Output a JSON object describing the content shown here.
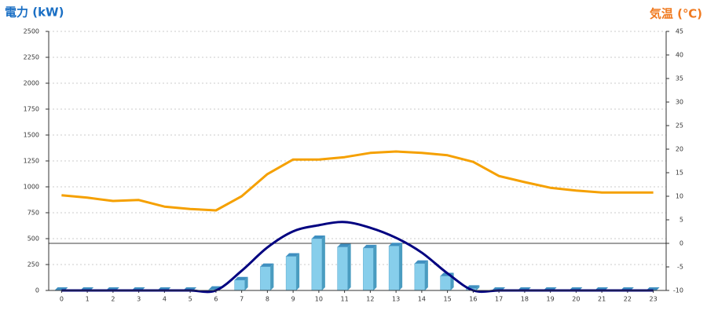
{
  "chart_data": {
    "type": "combo",
    "y_label": "電力 (kW)",
    "y2_label": "気温 (℃)",
    "categories": [
      "0",
      "1",
      "2",
      "3",
      "4",
      "5",
      "6",
      "7",
      "8",
      "9",
      "10",
      "11",
      "12",
      "13",
      "14",
      "15",
      "16",
      "17",
      "18",
      "19",
      "20",
      "21",
      "22",
      "23"
    ],
    "ylim": [
      0,
      2500
    ],
    "yticks": [
      0,
      250,
      500,
      750,
      1000,
      1250,
      1500,
      1750,
      2000,
      2250,
      2500
    ],
    "y2lim": [
      -10,
      45
    ],
    "y2ticks": [
      -10,
      -5,
      0,
      5,
      10,
      15,
      20,
      25,
      30,
      35,
      40,
      45
    ],
    "grid": true,
    "series": [
      {
        "type": "bar",
        "color": "#87ceeb",
        "values": [
          0,
          0,
          0,
          0,
          0,
          0,
          10,
          100,
          230,
          330,
          500,
          420,
          410,
          430,
          260,
          140,
          20,
          0,
          0,
          0,
          0,
          0,
          0,
          0
        ]
      },
      {
        "type": "line",
        "smooth": true,
        "color": "#000080",
        "values": [
          0,
          0,
          0,
          0,
          0,
          0,
          0,
          190,
          415,
          570,
          630,
          660,
          605,
          508,
          365,
          165,
          0,
          0,
          0,
          0,
          0,
          0,
          0,
          0
        ]
      },
      {
        "type": "line",
        "axis": "y2",
        "color": "#f5a000",
        "values": [
          10.2,
          9.7,
          9,
          9.2,
          7.8,
          7.3,
          7,
          10,
          14.7,
          17.8,
          17.8,
          18.3,
          19.2,
          19.5,
          19.2,
          18.7,
          17.3,
          14.3,
          13,
          11.8,
          11.2,
          10.8,
          10.8,
          10.8
        ]
      }
    ]
  }
}
